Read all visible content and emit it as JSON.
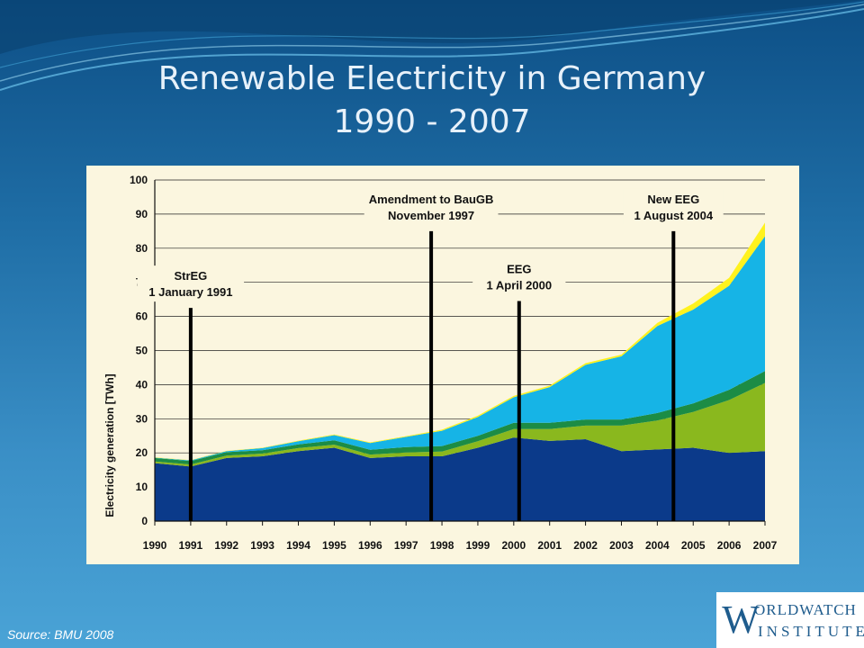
{
  "slide": {
    "title_line1": "Renewable Electricity in Germany",
    "title_line2": "1990 - 2007",
    "source": "Source: BMU 2008"
  },
  "logo": {
    "mark": "W",
    "top_text": "ORLDWATCH",
    "bottom_text": "INSTITUTE"
  },
  "chart_data": {
    "type": "area",
    "ylabel": "Electricity generation [TWh]",
    "ylim": [
      0,
      100
    ],
    "yticks": [
      0,
      10,
      20,
      30,
      40,
      50,
      60,
      70,
      80,
      90,
      100
    ],
    "x_tick_labels": [
      "1990",
      "1991",
      "1992",
      "1993",
      "1994",
      "1995",
      "1996",
      "1997",
      "1998",
      "1999",
      "2000",
      "2001",
      "2002",
      "2003",
      "2004",
      "2005",
      "2006",
      "2007"
    ],
    "grid": "horizontal",
    "legend": "none",
    "x": [
      1990,
      1991,
      1992,
      1993,
      1994,
      1995,
      1996,
      1997,
      1998,
      1999,
      2000,
      2001,
      2002,
      2003,
      2004,
      2005,
      2006,
      2007
    ],
    "series": [
      {
        "color": "#0b3a8a",
        "values": [
          17,
          16,
          18.5,
          19,
          20.5,
          21.5,
          18.5,
          19,
          19,
          21.5,
          24.5,
          23.5,
          24,
          20.5,
          21,
          21.5,
          20,
          20.5
        ]
      },
      {
        "color": "#8ab81e",
        "values": [
          0.5,
          0.6,
          0.7,
          0.8,
          0.9,
          0.9,
          1.0,
          1.1,
          1.4,
          1.9,
          2.5,
          3.5,
          4.0,
          7.5,
          8.5,
          10.5,
          15.5,
          20.0
        ]
      },
      {
        "color": "#1c8c45",
        "values": [
          1.0,
          1.0,
          1.0,
          1.0,
          1.1,
          1.3,
          1.4,
          1.6,
          1.6,
          1.6,
          1.8,
          1.8,
          1.8,
          1.8,
          2.2,
          2.5,
          3.0,
          3.5
        ]
      },
      {
        "color": "#16b4e6",
        "values": [
          0.1,
          0.2,
          0.3,
          0.6,
          0.9,
          1.5,
          2.0,
          3.0,
          4.5,
          5.5,
          7.5,
          10.5,
          16.0,
          18.5,
          25.5,
          27.5,
          30.5,
          39.5
        ]
      },
      {
        "color": "#fff21e",
        "values": [
          0.1,
          0.1,
          0.1,
          0.1,
          0.2,
          0.2,
          0.2,
          0.2,
          0.3,
          0.4,
          0.4,
          0.4,
          0.5,
          0.5,
          0.9,
          1.8,
          2.3,
          4.0
        ]
      }
    ],
    "annotations": [
      {
        "line1": "StrEG",
        "line2": "1 January 1991",
        "x": 1991.0,
        "y_top": 62.5
      },
      {
        "line1": "Amendment to BauGB",
        "line2": "November 1997",
        "x": 1997.7,
        "y_top": 85.0
      },
      {
        "line1": "EEG",
        "line2": "1 April 2000",
        "x": 2000.15,
        "y_top": 64.5
      },
      {
        "line1": "New EEG",
        "line2": "1 August 2004",
        "x": 2004.45,
        "y_top": 85.0
      }
    ]
  }
}
